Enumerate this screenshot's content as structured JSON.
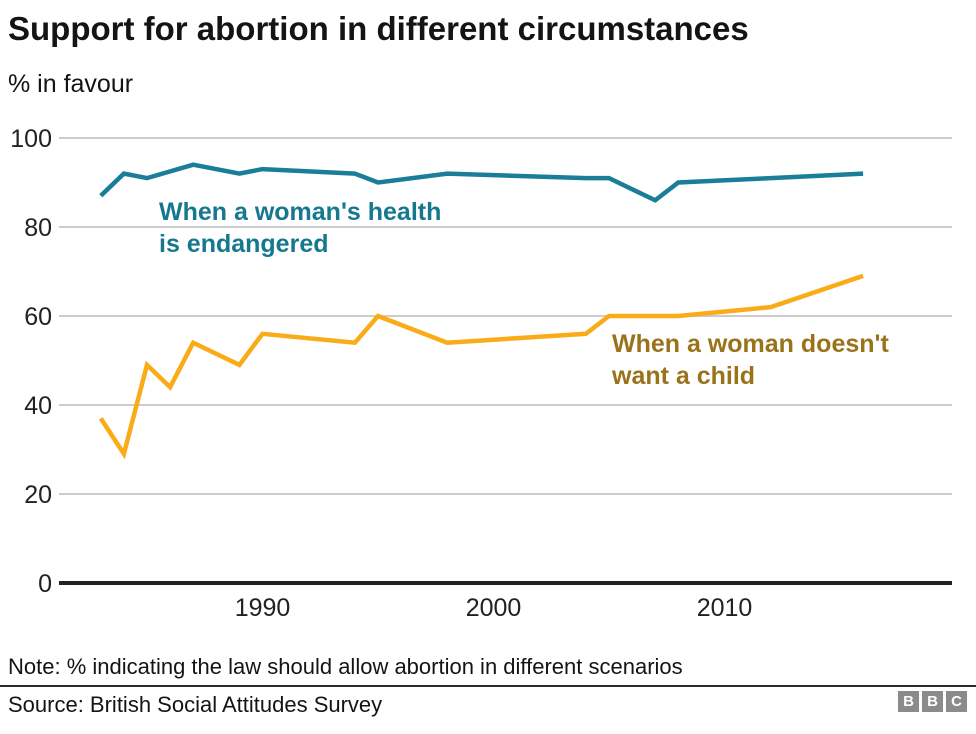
{
  "chart_data": {
    "type": "line",
    "title": "Support for abortion in different circumstances",
    "subtitle": "% in favour",
    "xlabel": "",
    "ylabel": "% in favour",
    "ylim": [
      0,
      100
    ],
    "xlim": [
      1981,
      2020
    ],
    "yticks": [
      0,
      20,
      40,
      60,
      80,
      100
    ],
    "xticks": [
      1990,
      2000,
      2010
    ],
    "grid": "horizontal",
    "legend_position": "inline-annotations",
    "series": [
      {
        "name": "When a woman's health is endangered",
        "label_lines": [
          "When a woman's health",
          "is endangered"
        ],
        "color": "#1B7E99",
        "label_color": "#16788F",
        "points": [
          [
            1983,
            87
          ],
          [
            1984,
            92
          ],
          [
            1985,
            91
          ],
          [
            1987,
            94
          ],
          [
            1989,
            92
          ],
          [
            1990,
            93
          ],
          [
            1994,
            92
          ],
          [
            1995,
            90
          ],
          [
            1998,
            92
          ],
          [
            2004,
            91
          ],
          [
            2005,
            91
          ],
          [
            2007,
            86
          ],
          [
            2008,
            90
          ],
          [
            2012,
            91
          ],
          [
            2016,
            92
          ]
        ]
      },
      {
        "name": "When a woman doesn't want a child",
        "label_lines": [
          "When a woman doesn't",
          "want a child"
        ],
        "color": "#FAAB18",
        "label_color": "#9A7219",
        "points": [
          [
            1983,
            37
          ],
          [
            1984,
            29
          ],
          [
            1985,
            49
          ],
          [
            1986,
            44
          ],
          [
            1987,
            54
          ],
          [
            1989,
            49
          ],
          [
            1990,
            56
          ],
          [
            1994,
            54
          ],
          [
            1995,
            60
          ],
          [
            1998,
            54
          ],
          [
            2004,
            56
          ],
          [
            2005,
            60
          ],
          [
            2008,
            60
          ],
          [
            2012,
            62
          ],
          [
            2016,
            69
          ]
        ]
      }
    ]
  },
  "footer": {
    "note": "Note: % indicating the law should allow abortion in different scenarios",
    "source": "Source: British Social Attitudes Survey",
    "logo_letters": [
      "B",
      "B",
      "C"
    ]
  },
  "colors": {
    "gridline": "#cccccc",
    "axis": "#222222",
    "text": "#141414",
    "bbc_block": "#8b8b8b"
  }
}
